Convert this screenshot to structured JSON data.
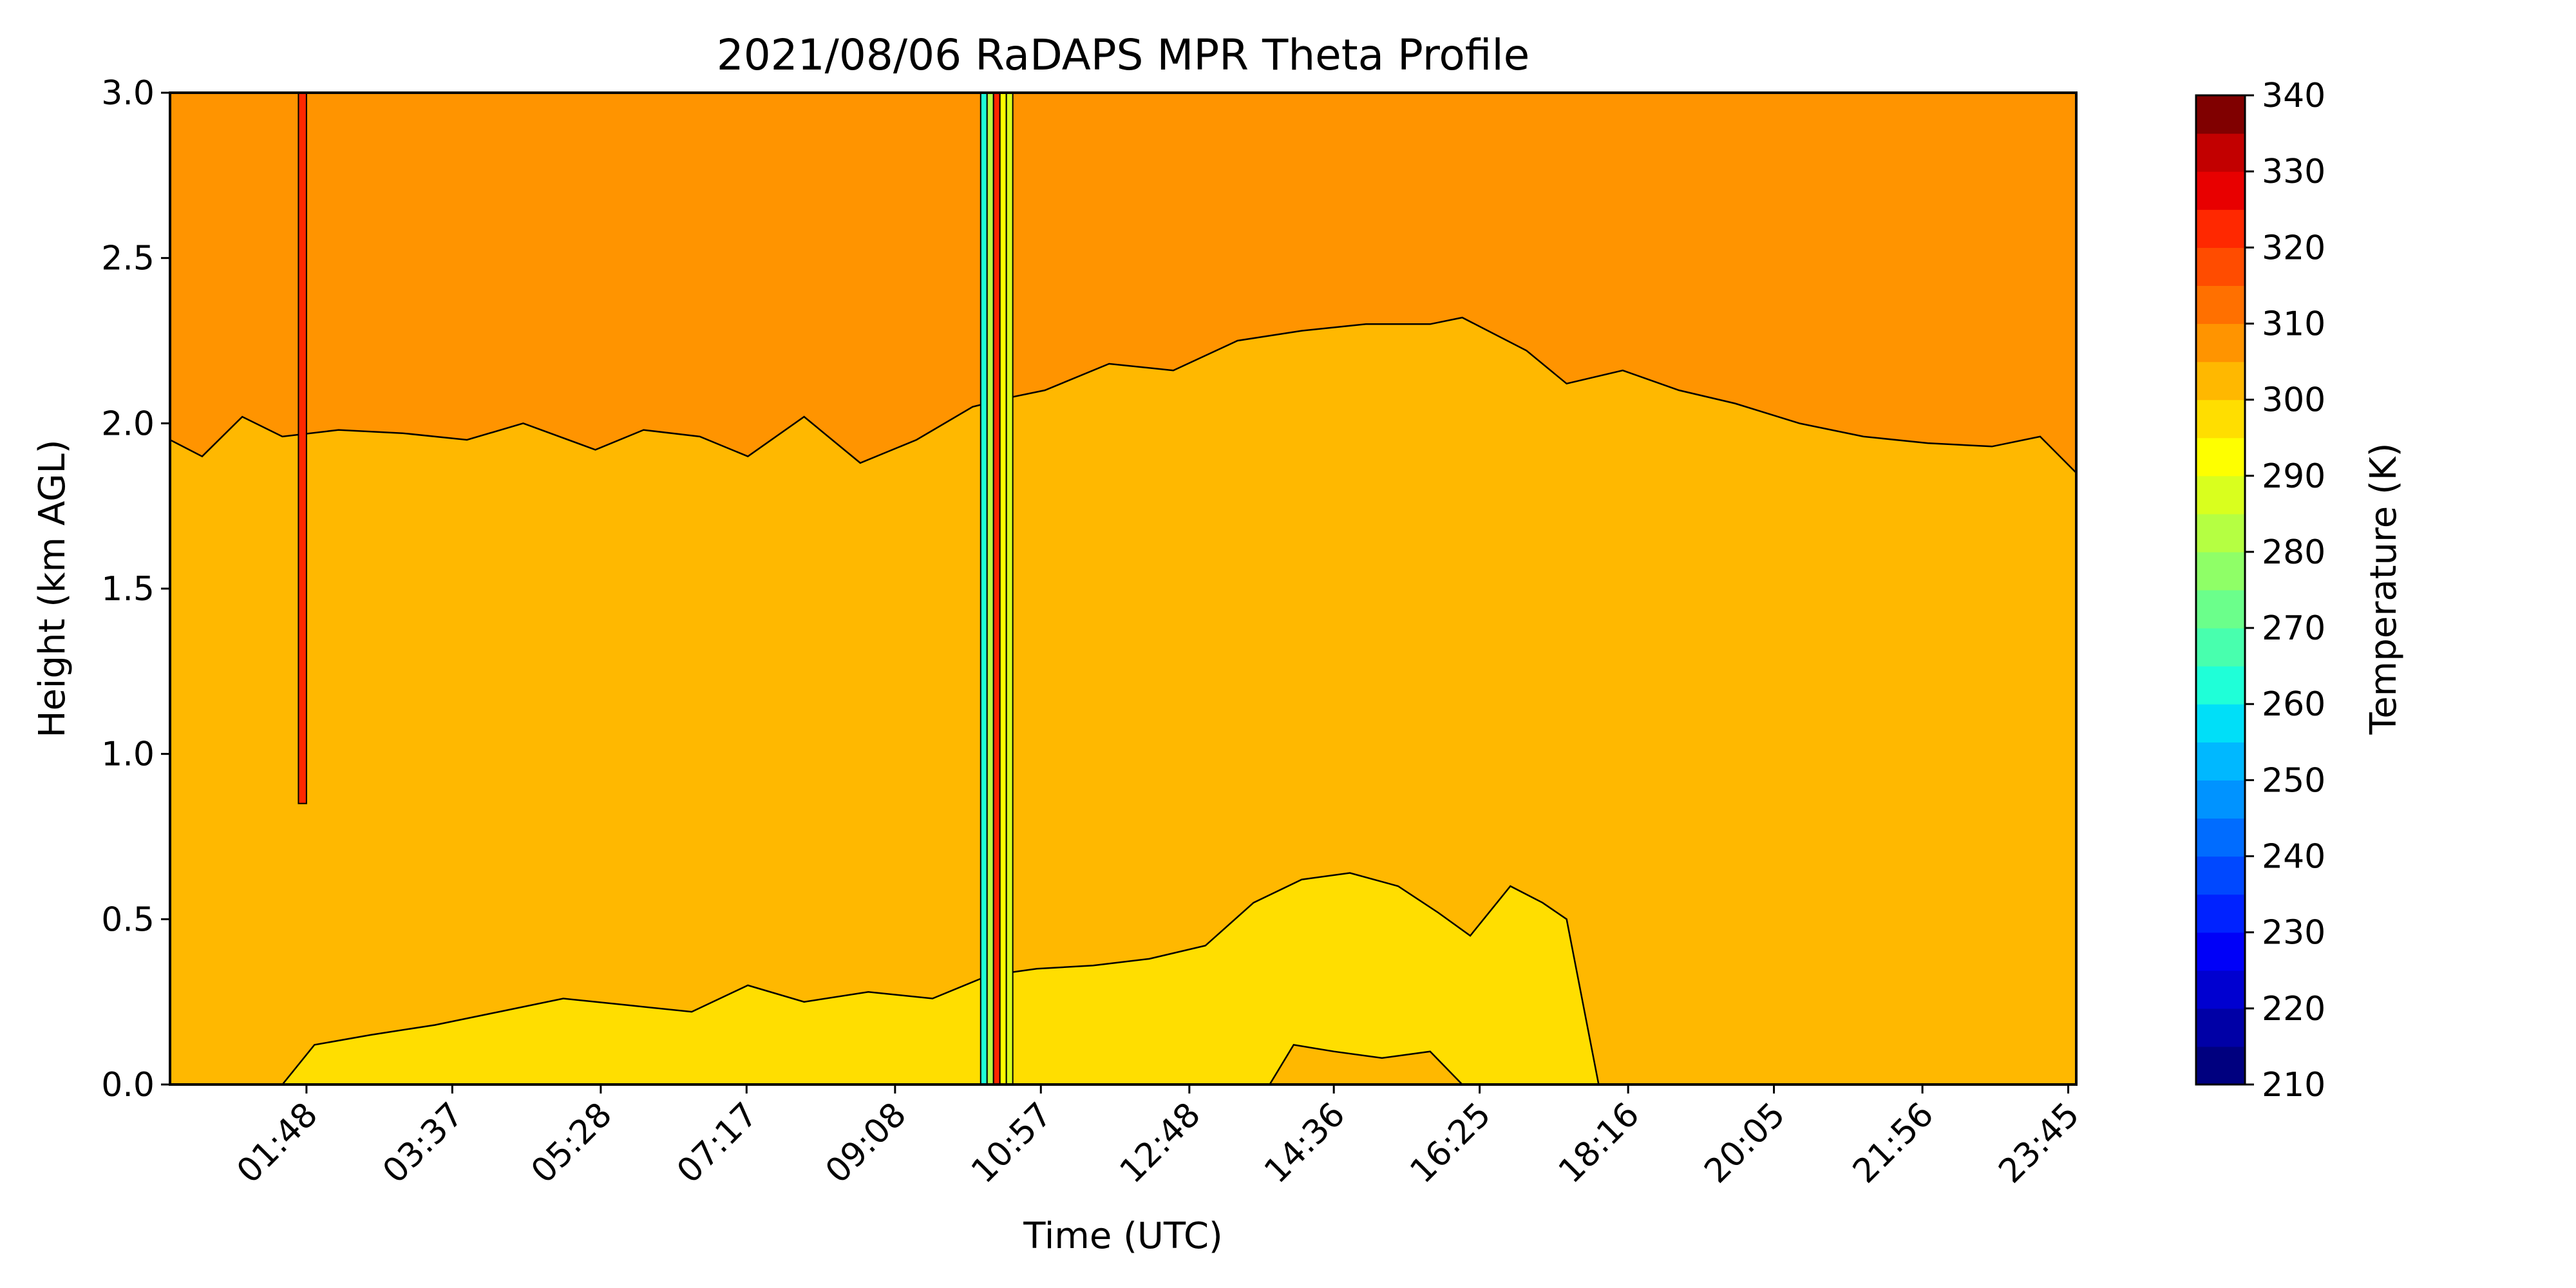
{
  "chart_data": {
    "type": "heatmap",
    "title": "2021/08/06 RaDAPS MPR Theta Profile",
    "xlabel": "Time (UTC)",
    "ylabel": "Height (km AGL)",
    "x_ticks": [
      "01:48",
      "03:37",
      "05:28",
      "07:17",
      "09:08",
      "10:57",
      "12:48",
      "14:36",
      "16:25",
      "18:16",
      "20:05",
      "21:56",
      "23:45"
    ],
    "x_tick_hours": [
      1.8,
      3.6167,
      5.4667,
      7.2833,
      9.1333,
      10.95,
      12.8,
      14.6,
      16.4167,
      18.2667,
      20.0833,
      21.9333,
      23.75
    ],
    "xlim": [
      0.1,
      23.85
    ],
    "ylim": [
      0,
      3
    ],
    "y_ticks": [
      "0.0",
      "0.5",
      "1.0",
      "1.5",
      "2.0",
      "2.5",
      "3.0"
    ],
    "colorbar": {
      "label": "Temperature (K)",
      "range": [
        210,
        340
      ],
      "step": 5,
      "ticks": [
        "210",
        "220",
        "230",
        "240",
        "250",
        "260",
        "270",
        "280",
        "290",
        "300",
        "310",
        "320",
        "330",
        "340"
      ],
      "levels": [
        "#00007f",
        "#0000a6",
        "#0000d0",
        "#0000f8",
        "#0022ff",
        "#0048ff",
        "#006cff",
        "#0093ff",
        "#00b8ff",
        "#00dff8",
        "#1fffd8",
        "#48ffae",
        "#6bff8b",
        "#8fff67",
        "#b5ff42",
        "#d9ff1e",
        "#feff00",
        "#ffde00",
        "#ffb800",
        "#ff9400",
        "#ff7000",
        "#ff4c00",
        "#ff2800",
        "#e80000",
        "#c20000",
        "#800000"
      ]
    },
    "field": {
      "boundary_layer_top_km": [
        [
          0.1,
          1.95
        ],
        [
          0.5,
          1.9
        ],
        [
          1.0,
          2.02
        ],
        [
          1.5,
          1.96
        ],
        [
          2.2,
          1.98
        ],
        [
          3.0,
          1.97
        ],
        [
          3.8,
          1.95
        ],
        [
          4.5,
          2.0
        ],
        [
          5.4,
          1.92
        ],
        [
          6.0,
          1.98
        ],
        [
          6.7,
          1.96
        ],
        [
          7.3,
          1.9
        ],
        [
          8.0,
          2.02
        ],
        [
          8.7,
          1.88
        ],
        [
          9.4,
          1.95
        ],
        [
          10.1,
          2.05
        ],
        [
          10.6,
          2.08
        ],
        [
          11.0,
          2.1
        ],
        [
          11.8,
          2.18
        ],
        [
          12.6,
          2.16
        ],
        [
          13.4,
          2.25
        ],
        [
          14.2,
          2.28
        ],
        [
          15.0,
          2.3
        ],
        [
          15.8,
          2.3
        ],
        [
          16.2,
          2.32
        ],
        [
          17.0,
          2.22
        ],
        [
          17.5,
          2.12
        ],
        [
          18.2,
          2.16
        ],
        [
          18.9,
          2.1
        ],
        [
          19.6,
          2.06
        ],
        [
          20.4,
          2.0
        ],
        [
          21.2,
          1.96
        ],
        [
          22.0,
          1.94
        ],
        [
          22.8,
          1.93
        ],
        [
          23.4,
          1.96
        ],
        [
          23.85,
          1.85
        ]
      ],
      "surface_layer_top_km": [
        [
          1.5,
          0.0
        ],
        [
          1.9,
          0.12
        ],
        [
          2.6,
          0.15
        ],
        [
          3.4,
          0.18
        ],
        [
          4.2,
          0.22
        ],
        [
          5.0,
          0.26
        ],
        [
          5.8,
          0.24
        ],
        [
          6.6,
          0.22
        ],
        [
          7.3,
          0.3
        ],
        [
          8.0,
          0.25
        ],
        [
          8.8,
          0.28
        ],
        [
          9.6,
          0.26
        ],
        [
          10.3,
          0.33
        ],
        [
          10.9,
          0.35
        ],
        [
          11.6,
          0.36
        ],
        [
          12.3,
          0.38
        ],
        [
          13.0,
          0.42
        ],
        [
          13.6,
          0.55
        ],
        [
          14.2,
          0.62
        ],
        [
          14.8,
          0.64
        ],
        [
          15.4,
          0.6
        ],
        [
          15.9,
          0.52
        ],
        [
          16.3,
          0.45
        ],
        [
          16.8,
          0.6
        ],
        [
          17.2,
          0.55
        ],
        [
          17.5,
          0.5
        ],
        [
          17.9,
          0.0
        ]
      ],
      "warm_core_top_km": [
        [
          13.8,
          0.0
        ],
        [
          14.1,
          0.12
        ],
        [
          14.6,
          0.1
        ],
        [
          15.2,
          0.08
        ],
        [
          15.8,
          0.1
        ],
        [
          16.2,
          0.0
        ]
      ]
    }
  }
}
